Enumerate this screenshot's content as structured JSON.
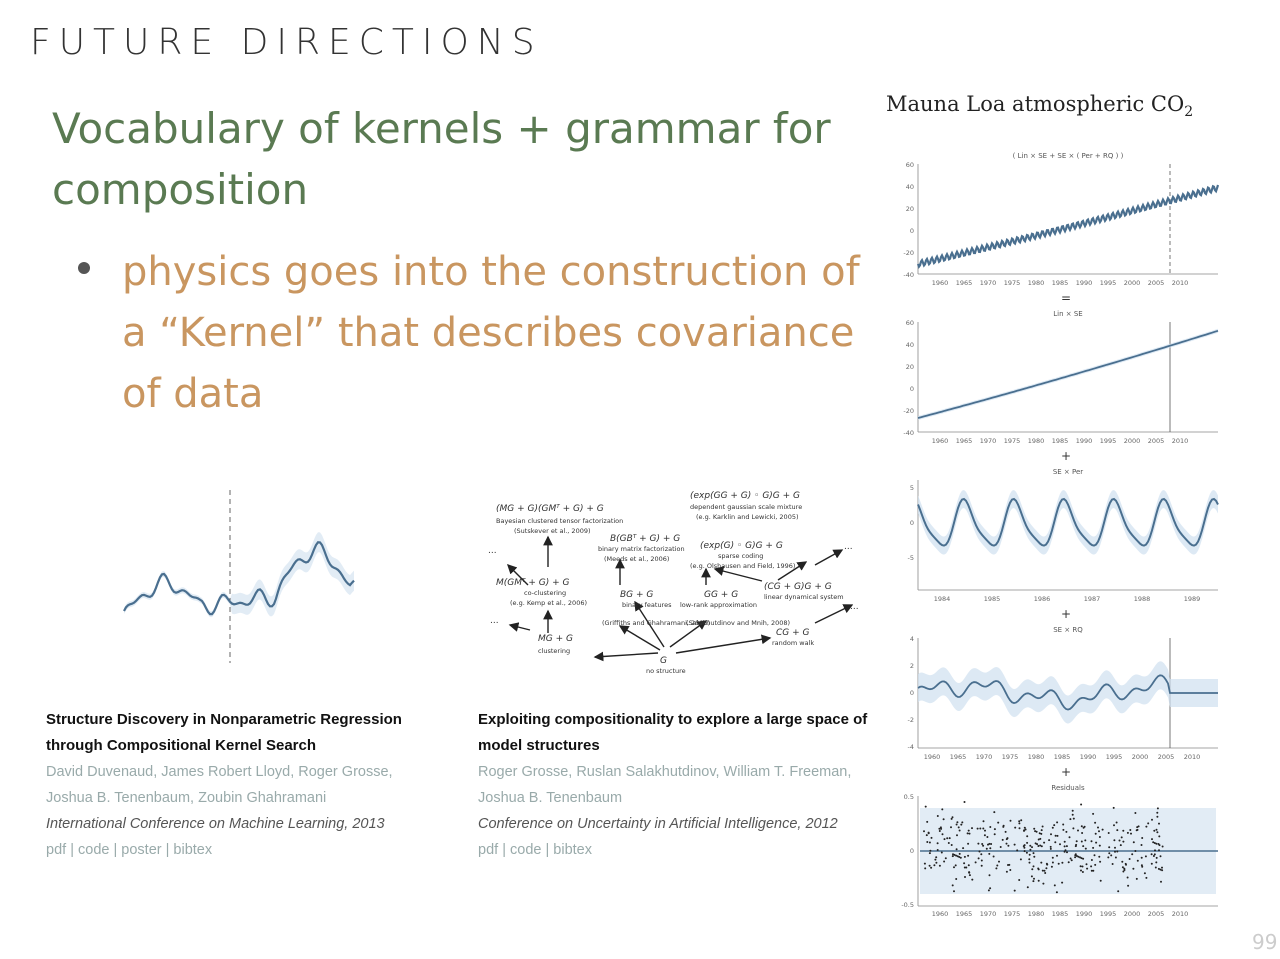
{
  "slide": {
    "section_title": "FUTURE DIRECTIONS",
    "heading": "Vocabulary of kernels + grammar for composition",
    "bullet": "physics goes into the construction of a “Kernel” that describes covariance of data",
    "page_number": "99"
  },
  "right_panel": {
    "title_main": "Mauna Loa atmospheric CO",
    "title_sub": "2",
    "panels": [
      {
        "caption": "( Lin × SE + SE × ( Per + RQ ) )",
        "yticks": [
          "60",
          "40",
          "20",
          "0",
          "-20",
          "-40"
        ],
        "xticks": [
          "1960",
          "1965",
          "1970",
          "1975",
          "1980",
          "1985",
          "1990",
          "1995",
          "2000",
          "2005",
          "2010"
        ]
      },
      {
        "caption": "Lin × SE",
        "yticks": [
          "60",
          "40",
          "20",
          "0",
          "-20",
          "-40"
        ],
        "xticks": [
          "1960",
          "1965",
          "1970",
          "1975",
          "1980",
          "1985",
          "1990",
          "1995",
          "2000",
          "2005",
          "2010"
        ]
      },
      {
        "caption": "SE × Per",
        "yticks": [
          "5",
          "0",
          "-5"
        ],
        "xticks": [
          "1984",
          "1985",
          "1986",
          "1987",
          "1988",
          "1989"
        ]
      },
      {
        "caption": "SE × RQ",
        "yticks": [
          "4",
          "2",
          "0",
          "-2",
          "-4"
        ],
        "xticks": [
          "1960",
          "1965",
          "1970",
          "1975",
          "1980",
          "1985",
          "1990",
          "1995",
          "2000",
          "2005",
          "2010"
        ]
      },
      {
        "caption": "Residuals",
        "yticks": [
          "0.5",
          "0",
          "-0.5"
        ],
        "xticks": [
          "1960",
          "1965",
          "1970",
          "1975",
          "1980",
          "1985",
          "1990",
          "1995",
          "2000",
          "2005",
          "2010"
        ]
      }
    ],
    "separators": [
      "=",
      "+",
      "+",
      "+"
    ]
  },
  "tree": {
    "nodes": [
      {
        "text": "(MG + G)(GMᵀ + G) + G",
        "sub": "Bayesian clustered tensor factorization",
        "sub2": "(Sutskever et al., 2009)"
      },
      {
        "text": "B(GBᵀ + G) + G",
        "sub": "binary matrix factorization",
        "sub2": "(Meeds et al., 2006)"
      },
      {
        "text": "(exp(GG + G) ◦ G)G + G",
        "sub": "dependent gaussian scale mixture",
        "sub2": "(e.g. Karklin and Lewicki, 2005)"
      },
      {
        "text": "(exp(G) ◦ G)G + G",
        "sub": "sparse coding",
        "sub2": "(e.g. Olshausen and Field, 1996)"
      },
      {
        "text": "M(GMᵀ + G) + G",
        "sub": "co-clustering",
        "sub2": "(e.g. Kemp et al., 2006)"
      },
      {
        "text": "BG + G",
        "sub": "binary features",
        "sub2": "(Griffiths and Ghahramani, 2005)"
      },
      {
        "text": "GG + G",
        "sub": "low-rank approximation",
        "sub2": "(Salakhutdinov and Mnih, 2008)"
      },
      {
        "text": "(CG + G)G + G",
        "sub": "linear dynamical system",
        "sub2": ""
      },
      {
        "text": "MG + G",
        "sub": "clustering",
        "sub2": ""
      },
      {
        "text": "CG + G",
        "sub": "random walk",
        "sub2": ""
      },
      {
        "text": "G",
        "sub": "no structure",
        "sub2": ""
      }
    ],
    "ellipsis": "..."
  },
  "references": [
    {
      "title": "Structure Discovery in Nonparametric Regression through Compositional Kernel Search",
      "authors": "David Duvenaud, James Robert Lloyd, Roger Grosse, Joshua B. Tenenbaum, Zoubin Ghahramani",
      "venue": "International Conference on Machine Learning, 2013",
      "links": [
        "pdf",
        "code",
        "poster",
        "bibtex"
      ]
    },
    {
      "title": "Exploiting compositionality to explore a large space of model structures",
      "authors": "Roger Grosse, Ruslan Salakhutdinov, William T. Freeman, Joshua B. Tenenbaum",
      "venue": "Conference on Uncertainty in Artificial Intelligence, 2012",
      "links": [
        "pdf",
        "code",
        "bibtex"
      ]
    }
  ],
  "colors": {
    "heading": "#5a7a52",
    "bullet": "#c99660",
    "curve": "#4a6f8f",
    "band": "#cfe0ef"
  }
}
